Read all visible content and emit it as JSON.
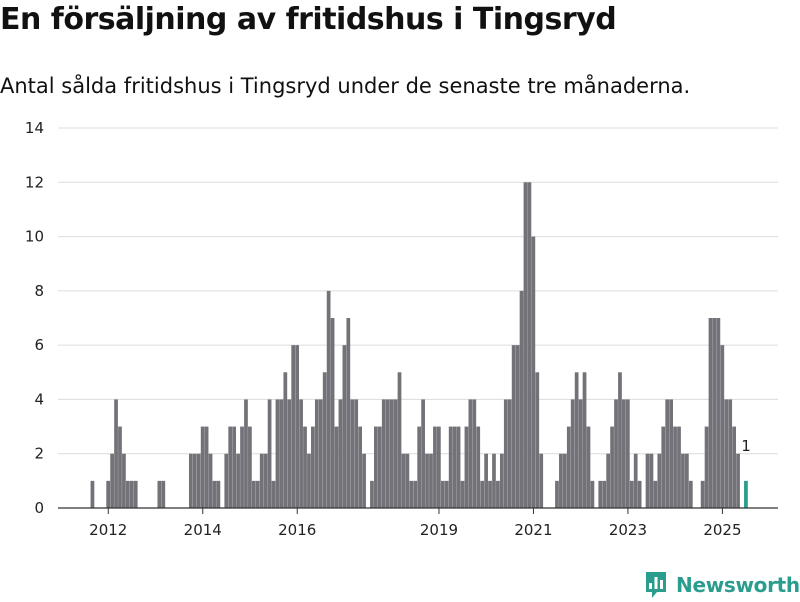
{
  "title": "En försäljning av fritidshus i Tingsryd",
  "subtitle": "Antal sålda fritidshus i Tingsryd under de senaste tre månaderna.",
  "brand": {
    "name": "Newsworthy",
    "icon": "bar-chart-speech-bubble-icon"
  },
  "colors": {
    "bar": "#737278",
    "highlight": "#2a9d8f",
    "grid": "#dcdcdc",
    "axis": "#333333"
  },
  "chart_data": {
    "type": "bar",
    "title": "",
    "xlabel": "",
    "ylabel": "",
    "ylim": [
      0,
      14
    ],
    "yticks": [
      0,
      2,
      4,
      6,
      8,
      10,
      12,
      14
    ],
    "grid": true,
    "xtick_labels": [
      "2012",
      "2014",
      "2016",
      "2019",
      "2021",
      "2023",
      "2025"
    ],
    "xtick_months": [
      "2012-01",
      "2014-01",
      "2016-01",
      "2019-01",
      "2021-01",
      "2023-01",
      "2025-01"
    ],
    "start_month": "2011-02",
    "values": [
      0,
      0,
      0,
      0,
      0,
      0,
      0,
      1,
      0,
      0,
      0,
      1,
      2,
      4,
      3,
      2,
      1,
      1,
      1,
      0,
      0,
      0,
      0,
      0,
      1,
      1,
      0,
      0,
      0,
      0,
      0,
      0,
      2,
      2,
      2,
      3,
      3,
      2,
      1,
      1,
      0,
      2,
      3,
      3,
      2,
      3,
      4,
      3,
      1,
      1,
      2,
      2,
      4,
      1,
      4,
      4,
      5,
      4,
      6,
      6,
      4,
      3,
      2,
      3,
      4,
      4,
      5,
      8,
      7,
      3,
      4,
      6,
      7,
      4,
      4,
      3,
      2,
      0,
      1,
      3,
      3,
      4,
      4,
      4,
      4,
      5,
      2,
      2,
      1,
      1,
      3,
      4,
      2,
      2,
      3,
      3,
      1,
      1,
      3,
      3,
      3,
      1,
      3,
      4,
      4,
      3,
      1,
      2,
      1,
      2,
      1,
      2,
      4,
      4,
      6,
      6,
      8,
      12,
      12,
      10,
      5,
      2,
      0,
      0,
      0,
      1,
      2,
      2,
      3,
      4,
      5,
      4,
      5,
      3,
      1,
      0,
      1,
      1,
      2,
      3,
      4,
      5,
      4,
      4,
      1,
      2,
      1,
      0,
      2,
      2,
      1,
      2,
      3,
      4,
      4,
      3,
      3,
      2,
      2,
      1,
      0,
      0,
      1,
      3,
      7,
      7,
      7,
      6,
      4,
      4,
      3,
      2,
      0,
      1
    ],
    "highlight_index": -1,
    "annotation": {
      "text": "1",
      "index": -1
    }
  }
}
